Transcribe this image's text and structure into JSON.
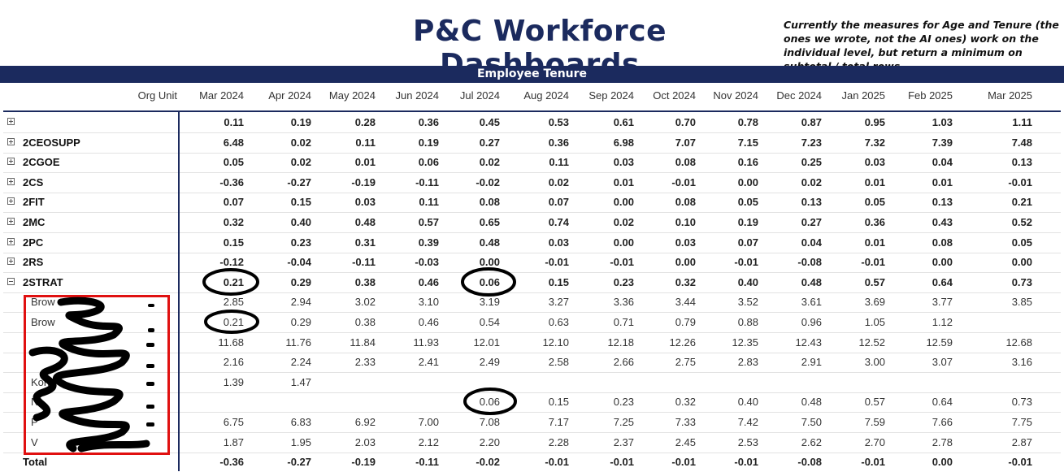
{
  "header": {
    "title": "P&C Workforce Dashboards",
    "note": "Currently the measures for Age and Tenure (the ones we wrote, not the AI ones) work on the individual level, but return a minimum on subtotal / total rows"
  },
  "banner": "Employee Tenure",
  "table": {
    "row_header": "Org Unit",
    "columns": [
      "Mar 2024",
      "Apr 2024",
      "May 2024",
      "Jun 2024",
      "Jul 2024",
      "Aug 2024",
      "Sep 2024",
      "Oct 2024",
      "Nov 2024",
      "Dec 2024",
      "Jan 2025",
      "Feb 2025",
      "Mar 2025"
    ],
    "rows": [
      {
        "label": "",
        "expander": "plus",
        "bold": true,
        "values": [
          "0.11",
          "0.19",
          "0.28",
          "0.36",
          "0.45",
          "0.53",
          "0.61",
          "0.70",
          "0.78",
          "0.87",
          "0.95",
          "1.03",
          "1.11"
        ]
      },
      {
        "label": "2CEOSUPP",
        "expander": "plus",
        "bold": true,
        "values": [
          "6.48",
          "0.02",
          "0.11",
          "0.19",
          "0.27",
          "0.36",
          "6.98",
          "7.07",
          "7.15",
          "7.23",
          "7.32",
          "7.39",
          "7.48"
        ]
      },
      {
        "label": "2CGOE",
        "expander": "plus",
        "bold": true,
        "values": [
          "0.05",
          "0.02",
          "0.01",
          "0.06",
          "0.02",
          "0.11",
          "0.03",
          "0.08",
          "0.16",
          "0.25",
          "0.03",
          "0.04",
          "0.13"
        ]
      },
      {
        "label": "2CS",
        "expander": "plus",
        "bold": true,
        "values": [
          "-0.36",
          "-0.27",
          "-0.19",
          "-0.11",
          "-0.02",
          "0.02",
          "0.01",
          "-0.01",
          "0.00",
          "0.02",
          "0.01",
          "0.01",
          "-0.01"
        ]
      },
      {
        "label": "2FIT",
        "expander": "plus",
        "bold": true,
        "values": [
          "0.07",
          "0.15",
          "0.03",
          "0.11",
          "0.08",
          "0.07",
          "0.00",
          "0.08",
          "0.05",
          "0.13",
          "0.05",
          "0.13",
          "0.21"
        ]
      },
      {
        "label": "2MC",
        "expander": "plus",
        "bold": true,
        "values": [
          "0.32",
          "0.40",
          "0.48",
          "0.57",
          "0.65",
          "0.74",
          "0.02",
          "0.10",
          "0.19",
          "0.27",
          "0.36",
          "0.43",
          "0.52"
        ]
      },
      {
        "label": "2PC",
        "expander": "plus",
        "bold": true,
        "values": [
          "0.15",
          "0.23",
          "0.31",
          "0.39",
          "0.48",
          "0.03",
          "0.00",
          "0.03",
          "0.07",
          "0.04",
          "0.01",
          "0.08",
          "0.05"
        ]
      },
      {
        "label": "2RS",
        "expander": "plus",
        "bold": true,
        "values": [
          "-0.12",
          "-0.04",
          "-0.11",
          "-0.03",
          "0.00",
          "-0.01",
          "-0.01",
          "0.00",
          "-0.01",
          "-0.08",
          "-0.01",
          "0.00",
          "0.00"
        ]
      },
      {
        "label": "2STRAT",
        "expander": "minus",
        "bold": true,
        "values": [
          "0.21",
          "0.29",
          "0.38",
          "0.46",
          "0.06",
          "0.15",
          "0.23",
          "0.32",
          "0.40",
          "0.48",
          "0.57",
          "0.64",
          "0.73"
        ]
      },
      {
        "label": "Brow",
        "expander": "",
        "bold": false,
        "values": [
          "2.85",
          "2.94",
          "3.02",
          "3.10",
          "3.19",
          "3.27",
          "3.36",
          "3.44",
          "3.52",
          "3.61",
          "3.69",
          "3.77",
          "3.85"
        ]
      },
      {
        "label": "Brow",
        "expander": "",
        "bold": false,
        "values": [
          "0.21",
          "0.29",
          "0.38",
          "0.46",
          "0.54",
          "0.63",
          "0.71",
          "0.79",
          "0.88",
          "0.96",
          "1.05",
          "1.12",
          ""
        ]
      },
      {
        "label": "",
        "expander": "",
        "bold": false,
        "values": [
          "11.68",
          "11.76",
          "11.84",
          "11.93",
          "12.01",
          "12.10",
          "12.18",
          "12.26",
          "12.35",
          "12.43",
          "12.52",
          "12.59",
          "12.68"
        ]
      },
      {
        "label": "",
        "expander": "",
        "bold": false,
        "values": [
          "2.16",
          "2.24",
          "2.33",
          "2.41",
          "2.49",
          "2.58",
          "2.66",
          "2.75",
          "2.83",
          "2.91",
          "3.00",
          "3.07",
          "3.16"
        ]
      },
      {
        "label": "Kon",
        "expander": "",
        "bold": false,
        "values": [
          "1.39",
          "1.47",
          "",
          "",
          "",
          "",
          "",
          "",
          "",
          "",
          "",
          "",
          ""
        ]
      },
      {
        "label": "N",
        "expander": "",
        "bold": false,
        "values": [
          "",
          "",
          "",
          "",
          "0.06",
          "0.15",
          "0.23",
          "0.32",
          "0.40",
          "0.48",
          "0.57",
          "0.64",
          "0.73"
        ]
      },
      {
        "label": "P",
        "expander": "",
        "bold": false,
        "values": [
          "6.75",
          "6.83",
          "6.92",
          "7.00",
          "7.08",
          "7.17",
          "7.25",
          "7.33",
          "7.42",
          "7.50",
          "7.59",
          "7.66",
          "7.75"
        ]
      },
      {
        "label": "V",
        "expander": "",
        "bold": false,
        "values": [
          "1.87",
          "1.95",
          "2.03",
          "2.12",
          "2.20",
          "2.28",
          "2.37",
          "2.45",
          "2.53",
          "2.62",
          "2.70",
          "2.78",
          "2.87"
        ]
      },
      {
        "label": "Total",
        "expander": "",
        "bold": true,
        "values": [
          "-0.36",
          "-0.27",
          "-0.19",
          "-0.11",
          "-0.02",
          "-0.01",
          "-0.01",
          "-0.01",
          "-0.01",
          "-0.08",
          "-0.01",
          "0.00",
          "-0.01"
        ]
      }
    ]
  },
  "colors": {
    "navy": "#1b2a5e",
    "redaction_box": "#e01010",
    "annotation": "#000000"
  }
}
